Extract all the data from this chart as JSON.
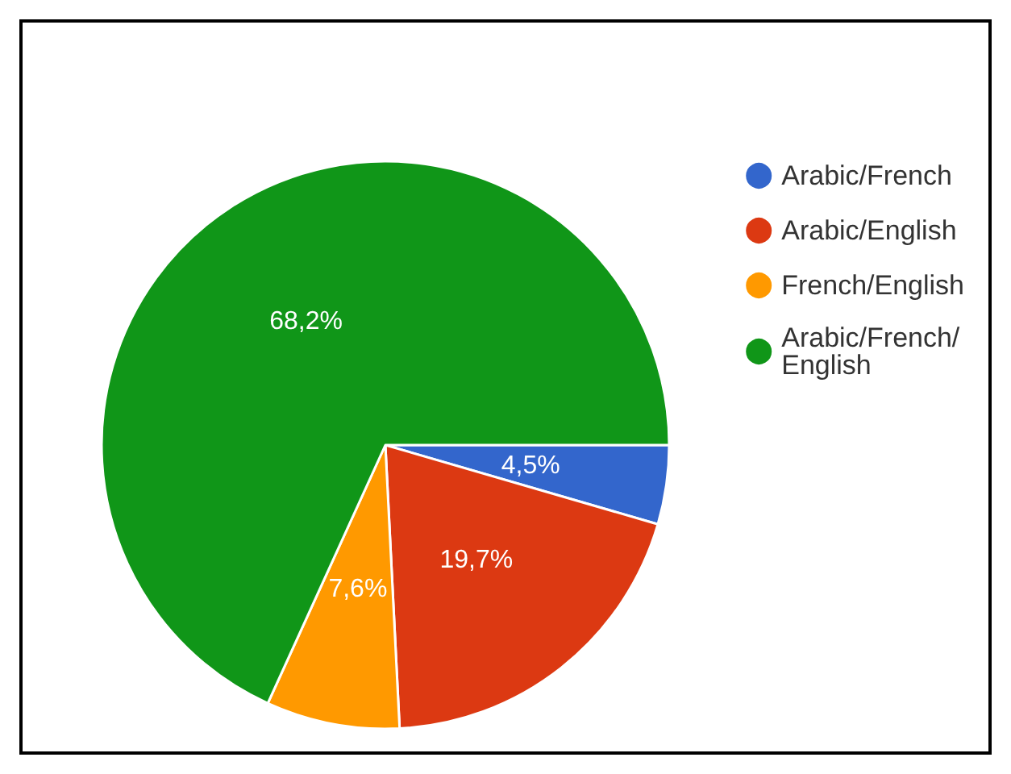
{
  "chart_data": {
    "type": "pie",
    "categories": [
      "Arabic/French",
      "Arabic/English",
      "French/English",
      "Arabic/French/English"
    ],
    "values": [
      4.5,
      19.7,
      7.6,
      68.2
    ],
    "colors": [
      "#3366cc",
      "#dc3912",
      "#ff9900",
      "#109618"
    ],
    "value_labels": [
      "4,5%",
      "19,7%",
      "7,6%",
      "68,2%"
    ],
    "legend": "top right"
  }
}
